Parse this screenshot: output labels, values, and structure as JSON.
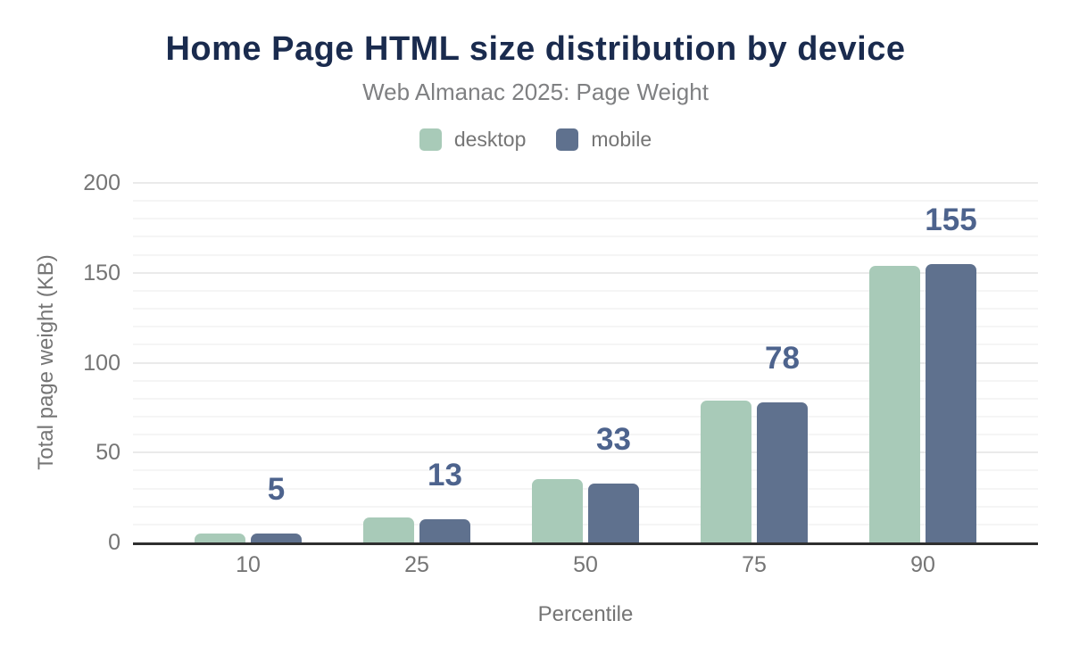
{
  "chart_data": {
    "type": "bar",
    "title": "Home Page HTML size distribution by device",
    "subtitle": "Web Almanac 2025: Page Weight",
    "categories": [
      "10",
      "25",
      "50",
      "75",
      "90"
    ],
    "series": [
      {
        "name": "desktop",
        "color": "#a8cab8",
        "values": [
          5,
          14,
          35,
          79,
          154
        ]
      },
      {
        "name": "mobile",
        "color": "#5f718e",
        "values": [
          5,
          13,
          33,
          78,
          155
        ]
      }
    ],
    "data_labels": {
      "on_series": "mobile",
      "values": [
        "5",
        "13",
        "33",
        "78",
        "155"
      ],
      "color": "#4d638d"
    },
    "xlabel": "Percentile",
    "ylabel": "Total page weight (KB)",
    "ylim": [
      0,
      200
    ],
    "yticks": [
      "0",
      "50",
      "100",
      "150",
      "200"
    ],
    "grid": {
      "minor_step": 10,
      "major_step": 50
    },
    "legend_position": "top"
  },
  "colors": {
    "title": "#1a2b4e",
    "subtitle": "#7f8082",
    "axis_text": "#757575",
    "axis_line": "#2f2f2f",
    "data_label": "#4d638d",
    "grid_minor": "#f5f5f5",
    "grid_major": "#eaeaea",
    "background": "#ffffff"
  }
}
